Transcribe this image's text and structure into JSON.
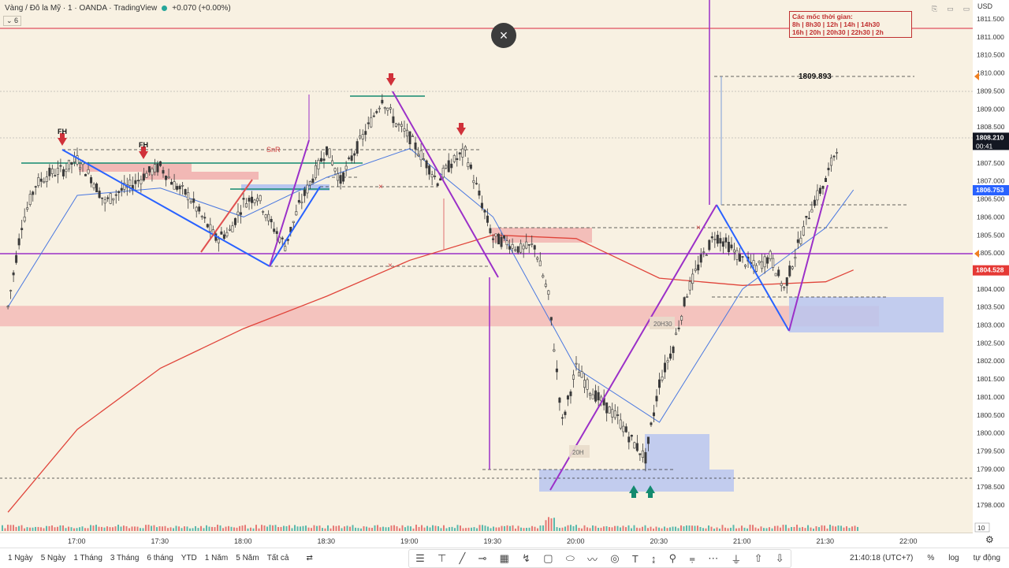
{
  "header": {
    "symbol": "Vàng / Đô la Mỹ · 1 · OANDA · TradingView",
    "change": "+0.070 (+0.00%)",
    "indicator_value": "6",
    "currency": "USD",
    "window_controls": [
      "⎘",
      "▭",
      "▭",
      "↗"
    ]
  },
  "note": {
    "line1": "Các mốc thời gian:",
    "line2": "8h | 8h30 | 12h | 14h | 14h30",
    "line3": "16h | 20h | 20h30 | 22h30 | 2h"
  },
  "close_label": "×",
  "annotations": {
    "fh1": "FH",
    "fh2": "FH",
    "snr": "SnR",
    "target": "1809.893",
    "box_20h30": "20H30",
    "box_20h": "20H",
    "x_mark": "×"
  },
  "price_axis": {
    "ticks": [
      "1811.500",
      "1811.000",
      "1810.500",
      "1810.000",
      "1809.500",
      "1809.000",
      "1808.500",
      "1808.000",
      "1807.500",
      "1807.000",
      "1806.500",
      "1806.000",
      "1805.500",
      "1805.000",
      "1804.500",
      "1804.000",
      "1803.500",
      "1803.000",
      "1802.500",
      "1802.000",
      "1801.500",
      "1801.000",
      "1800.500",
      "1800.000",
      "1799.500",
      "1799.000",
      "1798.500",
      "1798.000"
    ],
    "current_price": "1808.210",
    "countdown": "00:41",
    "ma_fast": "1806.753",
    "ma_slow": "1804.528",
    "volume_label": "10"
  },
  "time_axis": {
    "labels": [
      "17:00",
      "17:30",
      "18:00",
      "18:30",
      "19:00",
      "19:30",
      "20:00",
      "20:30",
      "21:00",
      "21:30",
      "22:00"
    ]
  },
  "bottom": {
    "ranges": [
      "1 Ngày",
      "5 Ngày",
      "1 Tháng",
      "3 Tháng",
      "6 tháng",
      "YTD",
      "1 Năm",
      "5 Năm",
      "Tất cả"
    ],
    "compare_icon": "⇄",
    "tools": [
      "☰",
      "⊤",
      "╱",
      "⊸",
      "▦",
      "↯",
      "▢",
      "⬭",
      "〰",
      "◎",
      "T",
      "↨",
      "⚲",
      "⩦",
      "⋯",
      "⏚",
      "⇧",
      "⇩"
    ],
    "clock": "21:40:18 (UTC+7)",
    "percent": "%",
    "log": "log",
    "auto": "tự động"
  },
  "colors": {
    "background": "#f8f1e2",
    "up_candle": "#3a3a3a",
    "down_candle": "#3a3a3a",
    "ma_fast": "#4a78e0",
    "ma_slow": "#e0443a",
    "purple": "#9b30c8",
    "blue_zone": "#b8c6f0",
    "red_zone": "#f2b8b5",
    "teal": "#138a6f",
    "current_price_bg": "#131722",
    "ma_fast_bg": "#2962ff",
    "ma_slow_bg": "#e53935"
  },
  "chart_data": {
    "type": "candlestick",
    "title": "Vàng / Đô la Mỹ · 1 · OANDA",
    "xlabel": "",
    "ylabel": "",
    "ylim": [
      1797.5,
      1811.75
    ],
    "x_ticks": [
      "17:00",
      "17:30",
      "18:00",
      "18:30",
      "19:00",
      "19:30",
      "20:00",
      "20:30",
      "21:00",
      "21:30",
      "22:00"
    ],
    "series": [
      {
        "name": "price",
        "points": [
          [
            "16:35",
            1803.5
          ],
          [
            "16:40",
            1805.8
          ],
          [
            "16:45",
            1806.9
          ],
          [
            "16:50",
            1807.2
          ],
          [
            "16:55",
            1807.3
          ],
          [
            "17:00",
            1807.6
          ],
          [
            "17:05",
            1807.1
          ],
          [
            "17:10",
            1806.4
          ],
          [
            "17:15",
            1806.7
          ],
          [
            "17:20",
            1806.9
          ],
          [
            "17:25",
            1807.2
          ],
          [
            "17:30",
            1807.4
          ],
          [
            "17:35",
            1806.9
          ],
          [
            "17:40",
            1806.6
          ],
          [
            "17:45",
            1806.0
          ],
          [
            "17:50",
            1805.4
          ],
          [
            "17:55",
            1805.6
          ],
          [
            "18:00",
            1806.4
          ],
          [
            "18:05",
            1806.6
          ],
          [
            "18:10",
            1805.8
          ],
          [
            "18:15",
            1805.2
          ],
          [
            "18:20",
            1806.3
          ],
          [
            "18:25",
            1807.1
          ],
          [
            "18:30",
            1807.9
          ],
          [
            "18:35",
            1807.0
          ],
          [
            "18:40",
            1807.8
          ],
          [
            "18:45",
            1808.5
          ],
          [
            "18:50",
            1809.3
          ],
          [
            "18:55",
            1808.6
          ],
          [
            "19:00",
            1808.2
          ],
          [
            "19:05",
            1807.6
          ],
          [
            "19:10",
            1807.0
          ],
          [
            "19:15",
            1807.5
          ],
          [
            "19:20",
            1807.8
          ],
          [
            "19:25",
            1806.6
          ],
          [
            "19:30",
            1805.4
          ],
          [
            "19:35",
            1805.3
          ],
          [
            "19:40",
            1805.1
          ],
          [
            "19:45",
            1805.2
          ],
          [
            "19:50",
            1803.8
          ],
          [
            "19:55",
            1800.3
          ],
          [
            "20:00",
            1801.8
          ],
          [
            "20:05",
            1801.2
          ],
          [
            "20:10",
            1800.8
          ],
          [
            "20:15",
            1800.4
          ],
          [
            "20:20",
            1799.8
          ],
          [
            "20:25",
            1799.3
          ],
          [
            "20:30",
            1801.4
          ],
          [
            "20:35",
            1802.4
          ],
          [
            "20:40",
            1803.9
          ],
          [
            "20:45",
            1804.8
          ],
          [
            "20:50",
            1805.5
          ],
          [
            "20:55",
            1805.2
          ],
          [
            "21:00",
            1804.8
          ],
          [
            "21:05",
            1804.6
          ],
          [
            "21:10",
            1804.9
          ],
          [
            "21:15",
            1804.0
          ],
          [
            "21:20",
            1805.2
          ],
          [
            "21:25",
            1806.3
          ],
          [
            "21:30",
            1807.0
          ],
          [
            "21:35",
            1808.2
          ]
        ]
      },
      {
        "name": "",
        "points": [
          [
            "16:35",
            1803.5
          ],
          [
            "17:00",
            1806.6
          ],
          [
            "17:30",
            1806.8
          ],
          [
            "18:00",
            1806.0
          ],
          [
            "18:30",
            1807.1
          ],
          [
            "19:00",
            1807.9
          ],
          [
            "19:30",
            1806.0
          ],
          [
            "20:00",
            1801.8
          ],
          [
            "20:30",
            1800.3
          ],
          [
            "21:00",
            1804.0
          ],
          [
            "21:30",
            1805.7
          ],
          [
            "21:40",
            1806.753
          ]
        ]
      },
      {
        "name": "",
        "points": [
          [
            "16:35",
            1797.8
          ],
          [
            "17:00",
            1800.1
          ],
          [
            "17:30",
            1801.8
          ],
          [
            "18:00",
            1802.9
          ],
          [
            "18:30",
            1803.8
          ],
          [
            "19:00",
            1804.8
          ],
          [
            "19:30",
            1805.5
          ],
          [
            "20:00",
            1805.4
          ],
          [
            "20:30",
            1804.3
          ],
          [
            "21:00",
            1804.1
          ],
          [
            "21:30",
            1804.2
          ],
          [
            "21:40",
            1804.528
          ]
        ]
      }
    ],
    "levels": [
      {
        "label": "",
        "value": 1811.3
      },
      {
        "label": "",
        "value": 1805.0
      },
      {
        "label": "1809.893",
        "value": 1809.893
      }
    ],
    "grid": false,
    "legend": "none"
  }
}
